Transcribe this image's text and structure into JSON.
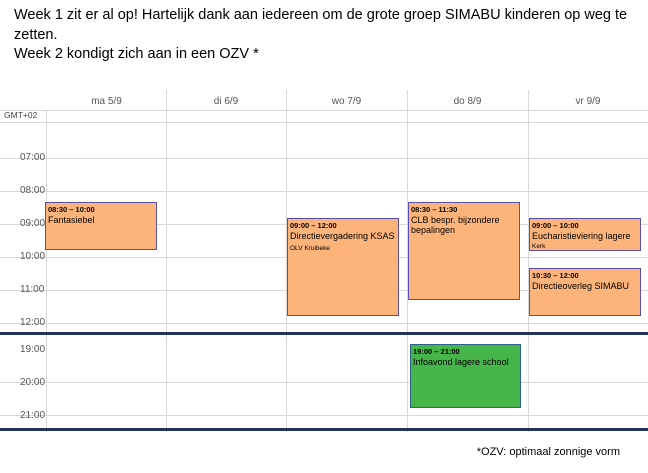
{
  "intro": {
    "line1": "Week 1 zit er al op! Hartelijk dank aan iedereen om de grote groep SIMABU kinderen op weg te zetten.",
    "line2": "Week 2 kondigt zich aan in een OZV *"
  },
  "calendar": {
    "timezone": "GMT+02",
    "days": [
      "ma 5/9",
      "di 6/9",
      "wo 7/9",
      "do 8/9",
      "vr 9/9"
    ],
    "morning_hours": [
      "07:00",
      "08:00",
      "09:00",
      "10:00",
      "11:00",
      "12:00"
    ],
    "evening_hours": [
      "19:00",
      "20:00",
      "21:00"
    ],
    "events": [
      {
        "time": "08:30 – 10:00",
        "title": "Fantasiebel",
        "location": ""
      },
      {
        "time": "09:00 – 12:00",
        "title": "Directievergadering KSAS",
        "location": "OLV Kruibeke"
      },
      {
        "time": "08:30 – 11:30",
        "title": "CLB bespr. bijzondere bepalingen",
        "location": ""
      },
      {
        "time": "09:00 – 10:00",
        "title": "Eucharistieviering lagere",
        "location": "Kerk"
      },
      {
        "time": "10:30 – 12:00",
        "title": "Directieoverleg SIMABU",
        "location": ""
      },
      {
        "time": "19:00 – 21:00",
        "title": "Infoavond lagere school",
        "location": ""
      }
    ],
    "colors": {
      "event": "#fdb47a",
      "evening_event": "#46b54a",
      "separator": "#1f3550"
    }
  },
  "footnote": "*OZV: optimaal zonnige vorm"
}
